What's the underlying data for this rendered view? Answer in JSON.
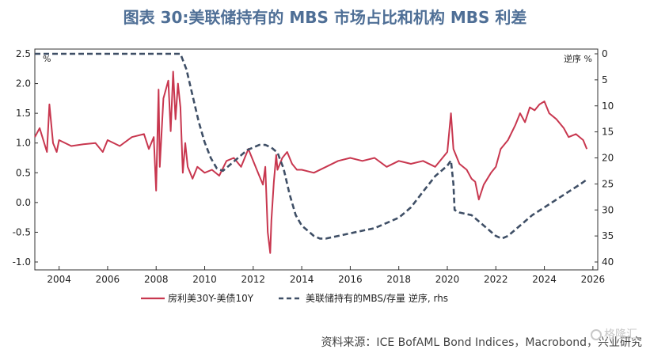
{
  "title": "图表 30:美联储持有的 MBS 市场占比和机构 MBS 利差",
  "source": "资料来源：ICE BofAML Bond Indices，Macrobond，兴业研究",
  "watermark": "格隆汇",
  "chart_data": {
    "type": "line",
    "left_axis": {
      "unit_label": "%",
      "ylim": [
        -1.0,
        2.5
      ],
      "ticks": [
        2.5,
        2.0,
        1.5,
        1.0,
        0.5,
        0.0,
        -0.5,
        -1.0
      ],
      "tick_labels": [
        "2.5",
        "2.0",
        "1.5",
        "1.0",
        "0.5",
        "0.0",
        "-0.5",
        "-1.0"
      ]
    },
    "right_axis": {
      "unit_label": "逆序 %",
      "inverted": true,
      "ylim": [
        0,
        40
      ],
      "ticks": [
        0,
        5,
        10,
        15,
        20,
        25,
        30,
        35,
        40
      ],
      "tick_labels": [
        "0",
        "5",
        "10",
        "15",
        "20",
        "25",
        "30",
        "35",
        "40"
      ]
    },
    "x_axis": {
      "xlim": [
        2003.0,
        2026.2
      ],
      "ticks": [
        2004,
        2006,
        2008,
        2010,
        2012,
        2014,
        2016,
        2018,
        2020,
        2022,
        2024,
        2026
      ],
      "tick_labels": [
        "2004",
        "2006",
        "2008",
        "2010",
        "2012",
        "2014",
        "2016",
        "2018",
        "2020",
        "2022",
        "2024",
        "2026"
      ]
    },
    "grid": false,
    "legend_position": "bottom",
    "series": [
      {
        "name": "房利美30Y-美债10Y",
        "axis": "left",
        "color": "#c8374f",
        "style": "solid",
        "x": [
          2003.0,
          2003.2,
          2003.5,
          2003.6,
          2003.75,
          2003.9,
          2004.0,
          2004.5,
          2005.0,
          2005.5,
          2005.8,
          2006.0,
          2006.5,
          2007.0,
          2007.5,
          2007.7,
          2007.9,
          2008.0,
          2008.1,
          2008.15,
          2008.3,
          2008.5,
          2008.6,
          2008.7,
          2008.8,
          2008.9,
          2009.0,
          2009.1,
          2009.2,
          2009.3,
          2009.5,
          2009.7,
          2010.0,
          2010.3,
          2010.6,
          2010.9,
          2011.2,
          2011.5,
          2011.8,
          2012.0,
          2012.2,
          2012.4,
          2012.5,
          2012.6,
          2012.7,
          2012.75,
          2012.85,
          2012.95,
          2013.0,
          2013.2,
          2013.4,
          2013.6,
          2013.8,
          2014.0,
          2014.5,
          2015.0,
          2015.5,
          2016.0,
          2016.5,
          2017.0,
          2017.5,
          2018.0,
          2018.5,
          2019.0,
          2019.5,
          2020.0,
          2020.15,
          2020.25,
          2020.5,
          2020.8,
          2021.0,
          2021.15,
          2021.3,
          2021.5,
          2021.8,
          2022.0,
          2022.2,
          2022.5,
          2022.8,
          2023.0,
          2023.2,
          2023.4,
          2023.6,
          2023.8,
          2024.0,
          2024.2,
          2024.5,
          2024.8,
          2025.0,
          2025.3,
          2025.6,
          2025.75
        ],
        "values": [
          1.1,
          1.25,
          0.85,
          1.65,
          1.0,
          0.85,
          1.05,
          0.95,
          0.98,
          1.0,
          0.85,
          1.05,
          0.95,
          1.1,
          1.15,
          0.9,
          1.1,
          0.2,
          1.9,
          0.6,
          1.75,
          2.05,
          1.2,
          2.2,
          1.4,
          2.0,
          1.6,
          0.5,
          1.0,
          0.6,
          0.4,
          0.6,
          0.5,
          0.55,
          0.45,
          0.7,
          0.75,
          0.6,
          0.9,
          0.7,
          0.5,
          0.3,
          0.6,
          -0.5,
          -0.85,
          -0.3,
          0.35,
          0.8,
          0.55,
          0.75,
          0.85,
          0.65,
          0.55,
          0.55,
          0.5,
          0.6,
          0.7,
          0.75,
          0.7,
          0.75,
          0.6,
          0.7,
          0.65,
          0.7,
          0.6,
          0.85,
          1.5,
          0.9,
          0.65,
          0.55,
          0.4,
          0.35,
          0.05,
          0.3,
          0.5,
          0.6,
          0.9,
          1.05,
          1.3,
          1.5,
          1.35,
          1.6,
          1.55,
          1.65,
          1.7,
          1.5,
          1.4,
          1.25,
          1.1,
          1.15,
          1.05,
          0.9
        ]
      },
      {
        "name": "美联储持有的MBS/存量 逆序, rhs",
        "axis": "right",
        "color": "#3f4f66",
        "style": "dashed",
        "x": [
          2003.0,
          2009.0,
          2009.25,
          2009.5,
          2009.75,
          2010.0,
          2010.25,
          2010.5,
          2010.75,
          2011.0,
          2011.25,
          2011.5,
          2011.75,
          2012.0,
          2012.25,
          2012.5,
          2012.75,
          2013.0,
          2013.25,
          2013.5,
          2013.75,
          2014.0,
          2014.25,
          2014.5,
          2014.75,
          2015.0,
          2015.5,
          2016.0,
          2016.5,
          2017.0,
          2017.5,
          2018.0,
          2018.5,
          2019.0,
          2019.5,
          2020.0,
          2020.15,
          2020.25,
          2020.3,
          2020.5,
          2021.0,
          2021.5,
          2022.0,
          2022.25,
          2022.5,
          2023.0,
          2023.5,
          2024.0,
          2024.5,
          2025.0,
          2025.5,
          2025.8
        ],
        "values": [
          0,
          0,
          3,
          8,
          13,
          17,
          20,
          22,
          22.5,
          21.5,
          20.5,
          19.5,
          18.5,
          18,
          17.5,
          17.5,
          18,
          19,
          22,
          27,
          31,
          33,
          34,
          35,
          35.5,
          35.5,
          35,
          34.5,
          34,
          33.5,
          32.5,
          31.5,
          29.5,
          26.5,
          23.5,
          21.5,
          20.5,
          25,
          30,
          30.5,
          31,
          33,
          35,
          35.5,
          35,
          33,
          31,
          29.5,
          28,
          26.5,
          25,
          24
        ]
      }
    ]
  }
}
